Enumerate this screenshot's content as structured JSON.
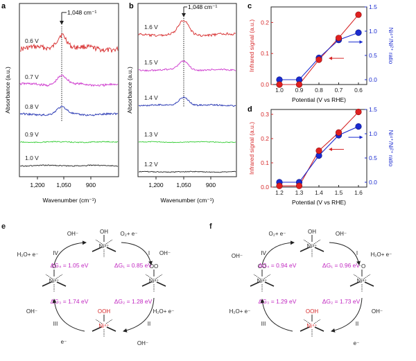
{
  "panels": {
    "a": {
      "letter": "a",
      "ylabel": "Absorbance (a.u.)",
      "xlabel": "Wavenumber (cm⁻¹)",
      "xticks": [
        "1,200",
        "1,050",
        "900"
      ],
      "annotation": "1,048 cm⁻¹",
      "traces": [
        {
          "label": "0.6 V",
          "color": "#d62728",
          "base": 70,
          "peak": 22,
          "noise": 5
        },
        {
          "label": "0.7 V",
          "color": "#cc33cc",
          "base": 122,
          "peak": 13,
          "noise": 2.5
        },
        {
          "label": "0.8 V",
          "color": "#1f2fb0",
          "base": 165,
          "peak": 10,
          "noise": 2
        },
        {
          "label": "0.9 V",
          "color": "#33cc33",
          "base": 205,
          "peak": 0,
          "noise": 1
        },
        {
          "label": "1.0 V",
          "color": "#222222",
          "base": 239,
          "peak": 0,
          "noise": 1
        }
      ]
    },
    "b": {
      "letter": "b",
      "ylabel": "Absorbance (a.u.)",
      "xlabel": "Wavenumber (cm⁻¹)",
      "xticks": [
        "1,200",
        "1,050",
        "900"
      ],
      "annotation": "1,048 cm⁻¹",
      "traces": [
        {
          "label": "1.6 V",
          "color": "#d62728",
          "base": 50,
          "peak": 20,
          "noise": 2.5
        },
        {
          "label": "1.5 V",
          "color": "#cc33cc",
          "base": 101,
          "peak": 13,
          "noise": 1.5
        },
        {
          "label": "1.4 V",
          "color": "#1f2fb0",
          "base": 152,
          "peak": 12,
          "noise": 1.5
        },
        {
          "label": "1.3 V",
          "color": "#33cc33",
          "base": 205,
          "peak": 0,
          "noise": 0.8
        },
        {
          "label": "1.2 V",
          "color": "#222222",
          "base": 248,
          "peak": 0,
          "noise": 0.8
        }
      ]
    },
    "c": {
      "letter": "c",
      "xlabel": "Potential (V vs RHE)",
      "ylabel_left": "Infrared signal (a.u.)",
      "ylabel_right": "Ni⁴⁺/Ni²⁺ ratio",
      "categories": [
        "1.0",
        "0.9",
        "0.8",
        "0.7",
        "0.6"
      ],
      "ylim_left": [
        0,
        0.25
      ],
      "yticks_left": [
        "0.0",
        "0.1",
        "0.2"
      ],
      "ylim_right": [
        -0.1,
        1.5
      ],
      "yticks_right": [
        "0.0",
        "0.5",
        "1.0",
        "1.5"
      ],
      "infrared": [
        0.0,
        0.0,
        0.08,
        0.15,
        0.225
      ],
      "ratio": [
        0.0,
        0.0,
        0.45,
        0.82,
        0.97
      ]
    },
    "d": {
      "letter": "d",
      "xlabel": "Potential (V vs RHE)",
      "ylabel_left": "Infrared signal (a.u.)",
      "ylabel_right": "Ni⁴⁺/Ni²⁺ ratio",
      "categories": [
        "1.2",
        "1.3",
        "1.4",
        "1.5",
        "1.6"
      ],
      "ylim_left": [
        0,
        0.32
      ],
      "yticks_left": [
        "0.0",
        "0.1",
        "0.2",
        "0.3"
      ],
      "ylim_right": [
        -0.1,
        1.5
      ],
      "yticks_right": [
        "0.0",
        "0.5",
        "1.0",
        "1.5"
      ],
      "infrared": [
        0.005,
        0.005,
        0.15,
        0.225,
        0.31
      ],
      "ratio": [
        0.0,
        0.0,
        0.55,
        0.97,
        1.15
      ]
    }
  },
  "chart_data": [
    {
      "type": "line",
      "xlabel": "Wavenumber (cm⁻¹)",
      "ylabel": "Absorbance (a.u.)",
      "legend": [
        "0.6 V",
        "0.7 V",
        "0.8 V",
        "0.9 V",
        "1.0 V"
      ],
      "annotation": "1,048 cm⁻¹"
    },
    {
      "type": "line",
      "xlabel": "Wavenumber (cm⁻¹)",
      "ylabel": "Absorbance (a.u.)",
      "legend": [
        "1.6 V",
        "1.5 V",
        "1.4 V",
        "1.3 V",
        "1.2 V"
      ],
      "annotation": "1,048 cm⁻¹"
    },
    {
      "type": "line",
      "xlabel": "Potential (V vs RHE)",
      "categories": [
        "1.0",
        "0.9",
        "0.8",
        "0.7",
        "0.6"
      ],
      "series": [
        {
          "name": "Infrared signal (a.u.)",
          "values": [
            0.0,
            0.0,
            0.08,
            0.15,
            0.225
          ]
        },
        {
          "name": "Ni⁴⁺/Ni²⁺ ratio",
          "values": [
            0.0,
            0.0,
            0.45,
            0.82,
            0.97
          ]
        }
      ]
    },
    {
      "type": "line",
      "xlabel": "Potential (V vs RHE)",
      "categories": [
        "1.2",
        "1.3",
        "1.4",
        "1.5",
        "1.6"
      ],
      "series": [
        {
          "name": "Infrared signal (a.u.)",
          "values": [
            0.005,
            0.005,
            0.15,
            0.225,
            0.31
          ]
        },
        {
          "name": "Ni⁴⁺/Ni²⁺ ratio",
          "values": [
            0.0,
            0.0,
            0.55,
            0.97,
            1.15
          ]
        }
      ]
    }
  ],
  "schemes": {
    "e": {
      "letter": "e",
      "species": {
        "top": "OH",
        "right": "OO",
        "bottom": "OOH",
        "left": "O"
      },
      "ion": {
        "top": "Ni³⁺",
        "right": "Ni³⁺",
        "bottom": "Ni⁴⁺",
        "left": "Ni³⁺"
      },
      "dg": {
        "g4": "ΔG₄ = 1.05 eV",
        "g1": "ΔG₁ = 0.85 eV",
        "g3": "ΔG₃ = 1.74 eV",
        "g2": "ΔG₂ = 1.28 eV"
      },
      "steps": {
        "I": "I",
        "II": "II",
        "III": "III",
        "IV": "IV"
      },
      "labels": {
        "oh_top": "OH⁻",
        "o2e": "O₂+ e⁻",
        "oh_right": "OH⁻",
        "h2oe_left": "H₂O+ e⁻",
        "h2oe_right": "H₂O+ e⁻",
        "oh_br": "OH⁻",
        "oh_bl": "OH⁻",
        "e_bl": "e⁻"
      }
    },
    "f": {
      "letter": "f",
      "species": {
        "top": "OH",
        "right": "⁻O",
        "bottom": "OOH",
        "left": "OO"
      },
      "ion": {
        "top": "Ni³⁺",
        "right": "Ni³⁺",
        "bottom": "Ni⁴⁺",
        "left": "Ni³⁺"
      },
      "dg": {
        "g4": "ΔG₄ = 0.94 eV",
        "g1": "ΔG₁ = 0.96 eV",
        "g3": "ΔG₃ = 1.29 eV",
        "g2": "ΔG₂ = 1.73 eV"
      },
      "steps": {
        "I": "I",
        "II": "II",
        "III": "III",
        "IV": "IV"
      },
      "labels": {
        "o2e": "O₂+ e⁻",
        "oh_top": "OH⁻",
        "oh_left": "OH⁻",
        "h2oe_right": "H₂O+ e⁻",
        "h2oe_left": "H₂O+ e⁻",
        "oh_br": "OH⁻",
        "e_br": "e⁻"
      }
    }
  },
  "colors": {
    "red": "#d62728",
    "blue": "#1a2bd0",
    "magenta": "#c026c0",
    "axis": "#222222"
  }
}
